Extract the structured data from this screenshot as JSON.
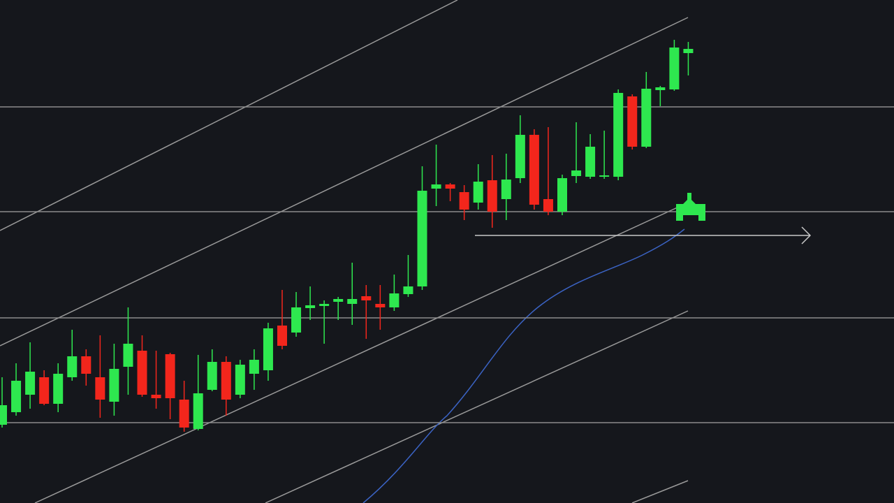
{
  "chart_data": {
    "type": "candlestick",
    "up_color": "#2ee84f",
    "down_color": "#f3261c",
    "ylim": [
      0,
      720
    ],
    "yticks": [
      115,
      265,
      417,
      567
    ],
    "grid": true,
    "open": [
      112,
      130,
      155,
      180,
      142,
      180,
      210,
      180,
      145,
      195,
      218,
      155,
      213,
      148,
      106,
      162,
      202,
      155,
      185,
      190,
      254,
      244,
      279,
      282,
      288,
      285,
      296,
      285,
      280,
      299,
      310,
      450,
      456,
      445,
      430,
      462,
      435,
      465,
      527,
      435,
      417,
      468,
      467,
      467,
      467,
      582,
      510,
      591,
      592,
      644
    ],
    "high": [
      180,
      200,
      230,
      190,
      200,
      248,
      220,
      240,
      228,
      280,
      240,
      218,
      215,
      175,
      212,
      220,
      210,
      205,
      220,
      258,
      305,
      302,
      310,
      290,
      295,
      344,
      312,
      312,
      327,
      355,
      482,
      513,
      458,
      455,
      485,
      498,
      500,
      555,
      535,
      538,
      470,
      545,
      528,
      533,
      592,
      585,
      617,
      597,
      663,
      660
    ],
    "low": [
      108,
      125,
      135,
      140,
      130,
      175,
      168,
      122,
      125,
      155,
      152,
      135,
      120,
      102,
      104,
      160,
      125,
      150,
      162,
      175,
      220,
      238,
      262,
      228,
      262,
      255,
      235,
      248,
      275,
      295,
      305,
      425,
      432,
      405,
      420,
      394,
      405,
      458,
      420,
      412,
      412,
      458,
      464,
      464,
      462,
      506,
      508,
      568,
      590,
      612
    ],
    "close": [
      140,
      175,
      188,
      142,
      185,
      210,
      185,
      148,
      192,
      228,
      155,
      150,
      150,
      108,
      157,
      202,
      148,
      198,
      205,
      250,
      225,
      280,
      283,
      285,
      292,
      292,
      290,
      280,
      300,
      310,
      447,
      456,
      450,
      420,
      460,
      417,
      463,
      527,
      427,
      417,
      465,
      476,
      510,
      469,
      587,
      510,
      593,
      595,
      652,
      650
    ]
  }
}
